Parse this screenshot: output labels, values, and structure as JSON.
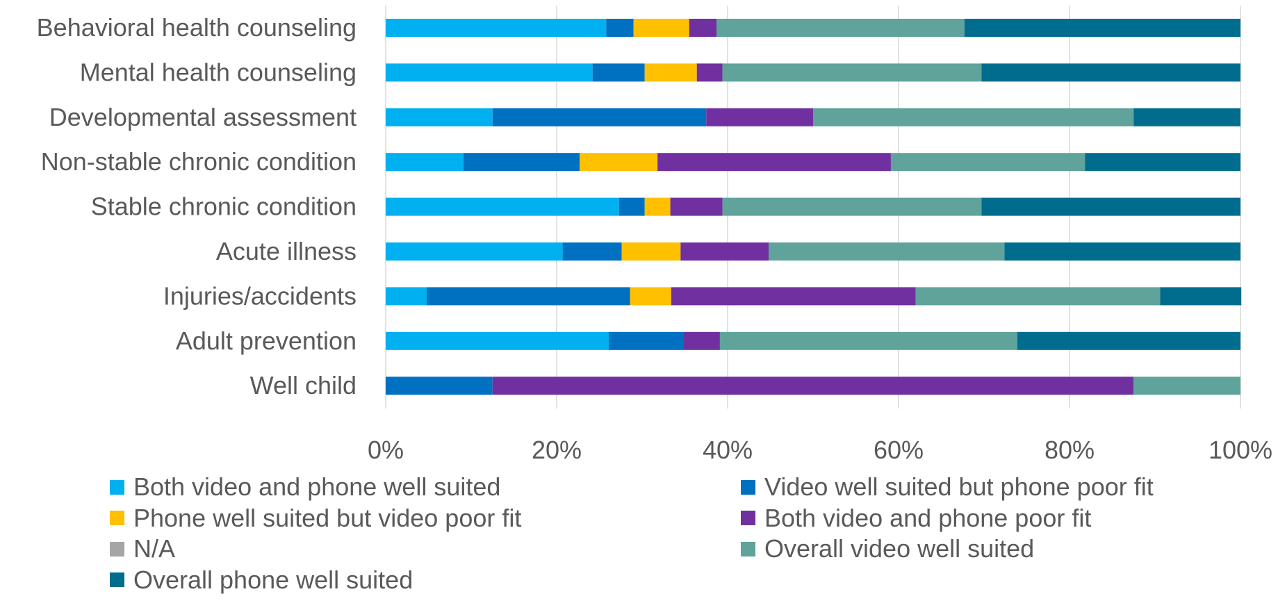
{
  "chart_data": {
    "type": "bar",
    "orientation": "horizontal",
    "stacked": "100%",
    "categories": [
      "Behavioral health counseling",
      "Mental health counseling",
      "Developmental assessment",
      "Non-stable chronic condition",
      "Stable chronic condition",
      "Acute illness",
      "Injuries/accidents",
      "Adult prevention",
      "Well child"
    ],
    "series": [
      {
        "name": "Both video and phone well suited",
        "color": "#00B0F0",
        "values": [
          25.8,
          24.2,
          12.5,
          9.1,
          27.3,
          20.7,
          4.8,
          26.1,
          0
        ]
      },
      {
        "name": "Video well suited but phone poor fit",
        "color": "#0070C0",
        "values": [
          3.2,
          6.1,
          25.0,
          13.6,
          3.0,
          6.9,
          23.8,
          8.7,
          12.5
        ]
      },
      {
        "name": "Phone well suited but video poor fit",
        "color": "#FFC000",
        "values": [
          6.5,
          6.1,
          0,
          9.1,
          3.0,
          6.9,
          4.8,
          0,
          0
        ]
      },
      {
        "name": "Both video and phone poor fit",
        "color": "#7030A0",
        "values": [
          3.2,
          3.0,
          12.5,
          27.3,
          6.1,
          10.3,
          28.6,
          4.3,
          75.0
        ]
      },
      {
        "name": "N/A",
        "color": "#A5A5A5",
        "values": [
          0,
          0,
          0,
          0,
          0,
          0,
          0,
          0,
          0
        ]
      },
      {
        "name": "Overall video well suited",
        "color": "#5FA39B",
        "values": [
          29.0,
          30.3,
          37.5,
          22.7,
          30.3,
          27.6,
          28.6,
          34.8,
          12.5
        ]
      },
      {
        "name": "Overall phone well suited",
        "color": "#006D8F",
        "values": [
          32.3,
          30.3,
          12.5,
          18.2,
          30.3,
          27.6,
          9.5,
          26.1,
          0
        ]
      }
    ],
    "x_ticks": [
      "0%",
      "20%",
      "40%",
      "60%",
      "80%",
      "100%"
    ],
    "xlim": [
      0,
      100
    ],
    "grid": true,
    "legend_position": "bottom",
    "title": "",
    "xlabel": "",
    "ylabel": ""
  }
}
